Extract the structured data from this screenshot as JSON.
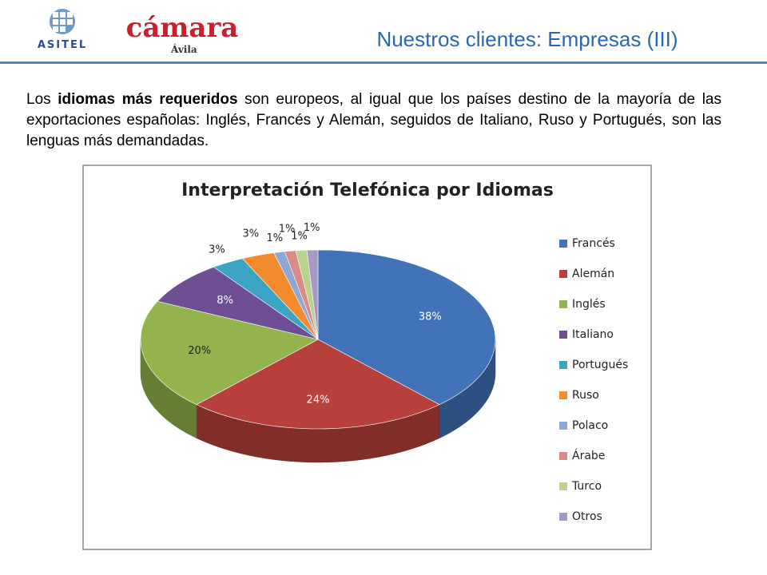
{
  "header": {
    "logo_left": "ASITEL",
    "logo_right": "cámara",
    "logo_right_sub": "Ávila",
    "title": "Nuestros clientes: Empresas (III)"
  },
  "text": {
    "before": "Los ",
    "bold": "idiomas más requeridos",
    "after": " son europeos, al igual que los países destino de la mayoría de las exportaciones españolas: Inglés, Francés y Alemán, seguidos de Italiano, Ruso y Portugués, son las lenguas más demandadas."
  },
  "chart_data": {
    "type": "pie",
    "title": "Interpretación Telefónica por Idiomas",
    "categories": [
      "Francés",
      "Alemán",
      "Inglés",
      "Italiano",
      "Portugués",
      "Ruso",
      "Polaco",
      "Árabe",
      "Turco",
      "Otros"
    ],
    "values": [
      38,
      24,
      20,
      8,
      3,
      3,
      1,
      1,
      1,
      1
    ],
    "value_labels": [
      "38%",
      "24%",
      "20%",
      "8%",
      "3%",
      "3%",
      "1%",
      "1%",
      "1%",
      "1%"
    ],
    "colors": [
      "#4272b8",
      "#b8403c",
      "#93b44c",
      "#6e4f94",
      "#3aa4c2",
      "#f28a2e",
      "#8ea8d6",
      "#d88c8a",
      "#b9d38c",
      "#a898c4"
    ],
    "legend": "right"
  }
}
